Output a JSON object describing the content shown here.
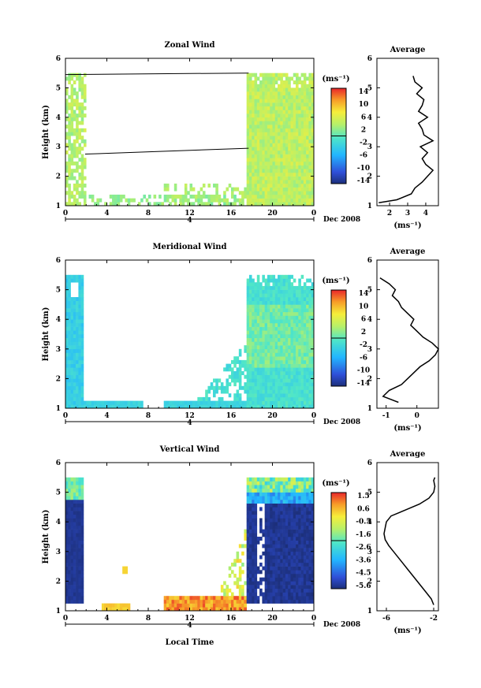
{
  "chart_data": [
    {
      "type": "heatmap",
      "title": "Zonal Wind",
      "ylabel": "Height (km)",
      "xlabel": "",
      "x_ticks": [
        "0",
        "4",
        "8",
        "12",
        "16",
        "20",
        "0"
      ],
      "y_ticks": [
        "1",
        "2",
        "3",
        "4",
        "5",
        "6"
      ],
      "xlim": [
        0,
        24
      ],
      "ylim": [
        1,
        6
      ],
      "date_label": "4",
      "date_suffix": "Dec 2008",
      "colorbar": {
        "unit": "(ms⁻¹)",
        "ticks": [
          "14",
          "10",
          "6",
          "2",
          "-2",
          "-6",
          "-10",
          "-14"
        ],
        "range": [
          -16,
          16
        ]
      },
      "average_profile": {
        "title": "Average",
        "xlabel": "(ms⁻¹)",
        "x_ticks": [
          "2",
          "3",
          "4"
        ],
        "xlim": [
          1.3,
          4.7
        ],
        "height_km": [
          1.1,
          1.2,
          1.4,
          1.6,
          1.8,
          2.0,
          2.2,
          2.4,
          2.6,
          2.8,
          3.0,
          3.2,
          3.4,
          3.6,
          3.8,
          4.0,
          4.2,
          4.4,
          4.6,
          4.8,
          5.0,
          5.2,
          5.4
        ],
        "value": [
          1.4,
          2.4,
          3.2,
          3.4,
          3.8,
          4.1,
          4.4,
          4.0,
          3.8,
          4.1,
          3.7,
          4.4,
          3.9,
          3.8,
          3.6,
          4.1,
          3.6,
          3.8,
          3.9,
          3.5,
          3.8,
          3.4,
          3.3
        ]
      }
    },
    {
      "type": "heatmap",
      "title": "Meridional Wind",
      "ylabel": "Height (km)",
      "xlabel": "",
      "x_ticks": [
        "0",
        "4",
        "8",
        "12",
        "16",
        "20",
        "0"
      ],
      "y_ticks": [
        "1",
        "2",
        "3",
        "4",
        "5",
        "6"
      ],
      "xlim": [
        0,
        24
      ],
      "ylim": [
        1,
        6
      ],
      "date_label": "4",
      "date_suffix": "Dec 2008",
      "colorbar": {
        "unit": "(ms⁻¹)",
        "ticks": [
          "14",
          "10",
          "6",
          "2",
          "-2",
          "-6",
          "-10",
          "-14"
        ],
        "range": [
          -16,
          16
        ]
      },
      "average_profile": {
        "title": "Average",
        "xlabel": "(ms⁻¹)",
        "x_ticks": [
          "-1",
          "0"
        ],
        "xlim": [
          -1.3,
          0.7
        ],
        "height_km": [
          1.2,
          1.4,
          1.6,
          1.8,
          2.0,
          2.2,
          2.4,
          2.6,
          2.8,
          3.0,
          3.2,
          3.4,
          3.6,
          3.8,
          4.0,
          4.2,
          4.4,
          4.6,
          4.8,
          5.0,
          5.2,
          5.4
        ],
        "value": [
          -0.6,
          -1.1,
          -0.9,
          -0.5,
          -0.3,
          -0.1,
          0.1,
          0.4,
          0.6,
          0.7,
          0.5,
          0.2,
          0.0,
          -0.2,
          -0.1,
          -0.3,
          -0.5,
          -0.6,
          -0.8,
          -0.7,
          -0.9,
          -1.2
        ]
      }
    },
    {
      "type": "heatmap",
      "title": "Vertical Wind",
      "ylabel": "Height (km)",
      "xlabel": "Local Time",
      "x_ticks": [
        "0",
        "4",
        "8",
        "12",
        "16",
        "20",
        "0"
      ],
      "y_ticks": [
        "1",
        "2",
        "3",
        "4",
        "5",
        "6"
      ],
      "xlim": [
        0,
        24
      ],
      "ylim": [
        1,
        6
      ],
      "date_label": "4",
      "date_suffix": "Dec 2008",
      "colorbar": {
        "unit": "(ms⁻¹)",
        "ticks": [
          "1.5",
          "0.6",
          "-0.5",
          "-1.6",
          "-2.6",
          "-3.6",
          "-4.5",
          "-5.6"
        ],
        "range": [
          -6.1,
          2.0
        ]
      },
      "average_profile": {
        "title": "Average",
        "xlabel": "(ms⁻¹)",
        "x_ticks": [
          "-6",
          "-2"
        ],
        "xlim": [
          -6.8,
          -1.6
        ],
        "height_km": [
          1.2,
          1.4,
          1.6,
          1.8,
          2.0,
          2.2,
          2.4,
          2.6,
          2.8,
          3.0,
          3.2,
          3.4,
          3.6,
          3.8,
          4.0,
          4.2,
          4.4,
          4.6,
          4.8,
          5.0,
          5.2,
          5.4,
          5.5
        ],
        "value": [
          -2.0,
          -2.2,
          -2.6,
          -3.0,
          -3.4,
          -3.8,
          -4.2,
          -4.6,
          -5.0,
          -5.4,
          -5.8,
          -6.1,
          -6.2,
          -6.1,
          -6.0,
          -5.6,
          -4.4,
          -3.2,
          -2.4,
          -2.0,
          -1.9,
          -2.0,
          -1.9
        ]
      }
    }
  ]
}
